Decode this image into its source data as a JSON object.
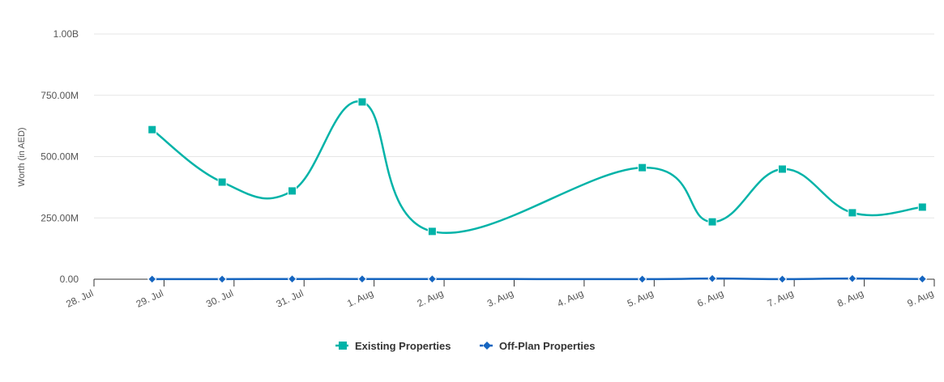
{
  "chart_data": {
    "type": "line",
    "title": "",
    "xlabel": "",
    "ylabel": "Worth (in AED)",
    "ylim": [
      0,
      1000000000
    ],
    "yticks": [
      {
        "value": 0,
        "label": "0.00"
      },
      {
        "value": 250000000,
        "label": "250.00M"
      },
      {
        "value": 500000000,
        "label": "500.00M"
      },
      {
        "value": 750000000,
        "label": "750.00M"
      },
      {
        "value": 1000000000,
        "label": "1.00B"
      }
    ],
    "xticks": [
      "28. Jul",
      "29. Jul",
      "30. Jul",
      "31. Jul",
      "1. Aug",
      "2. Aug",
      "3. Aug",
      "4. Aug",
      "5. Aug",
      "6. Aug",
      "7. Aug",
      "8. Aug",
      "9. Aug"
    ],
    "grid": true,
    "legend_position": "bottom-center",
    "series": [
      {
        "name": "Existing Properties",
        "color": "#00b3a8",
        "marker": "square",
        "x": [
          "29. Jul",
          "30. Jul",
          "31. Jul",
          "1. Aug",
          "2. Aug",
          "5. Aug",
          "6. Aug",
          "7. Aug",
          "8. Aug",
          "9. Aug"
        ],
        "values": [
          610000000,
          396000000,
          360000000,
          723000000,
          195000000,
          455000000,
          234000000,
          449000000,
          271000000,
          294000000
        ]
      },
      {
        "name": "Off-Plan Properties",
        "color": "#1565c0",
        "marker": "diamond",
        "x": [
          "29. Jul",
          "30. Jul",
          "31. Jul",
          "1. Aug",
          "2. Aug",
          "5. Aug",
          "6. Aug",
          "7. Aug",
          "8. Aug",
          "9. Aug"
        ],
        "values": [
          500000,
          500000,
          1000000,
          1000000,
          1000000,
          500000,
          3000000,
          500000,
          3000000,
          1000000
        ]
      }
    ]
  }
}
